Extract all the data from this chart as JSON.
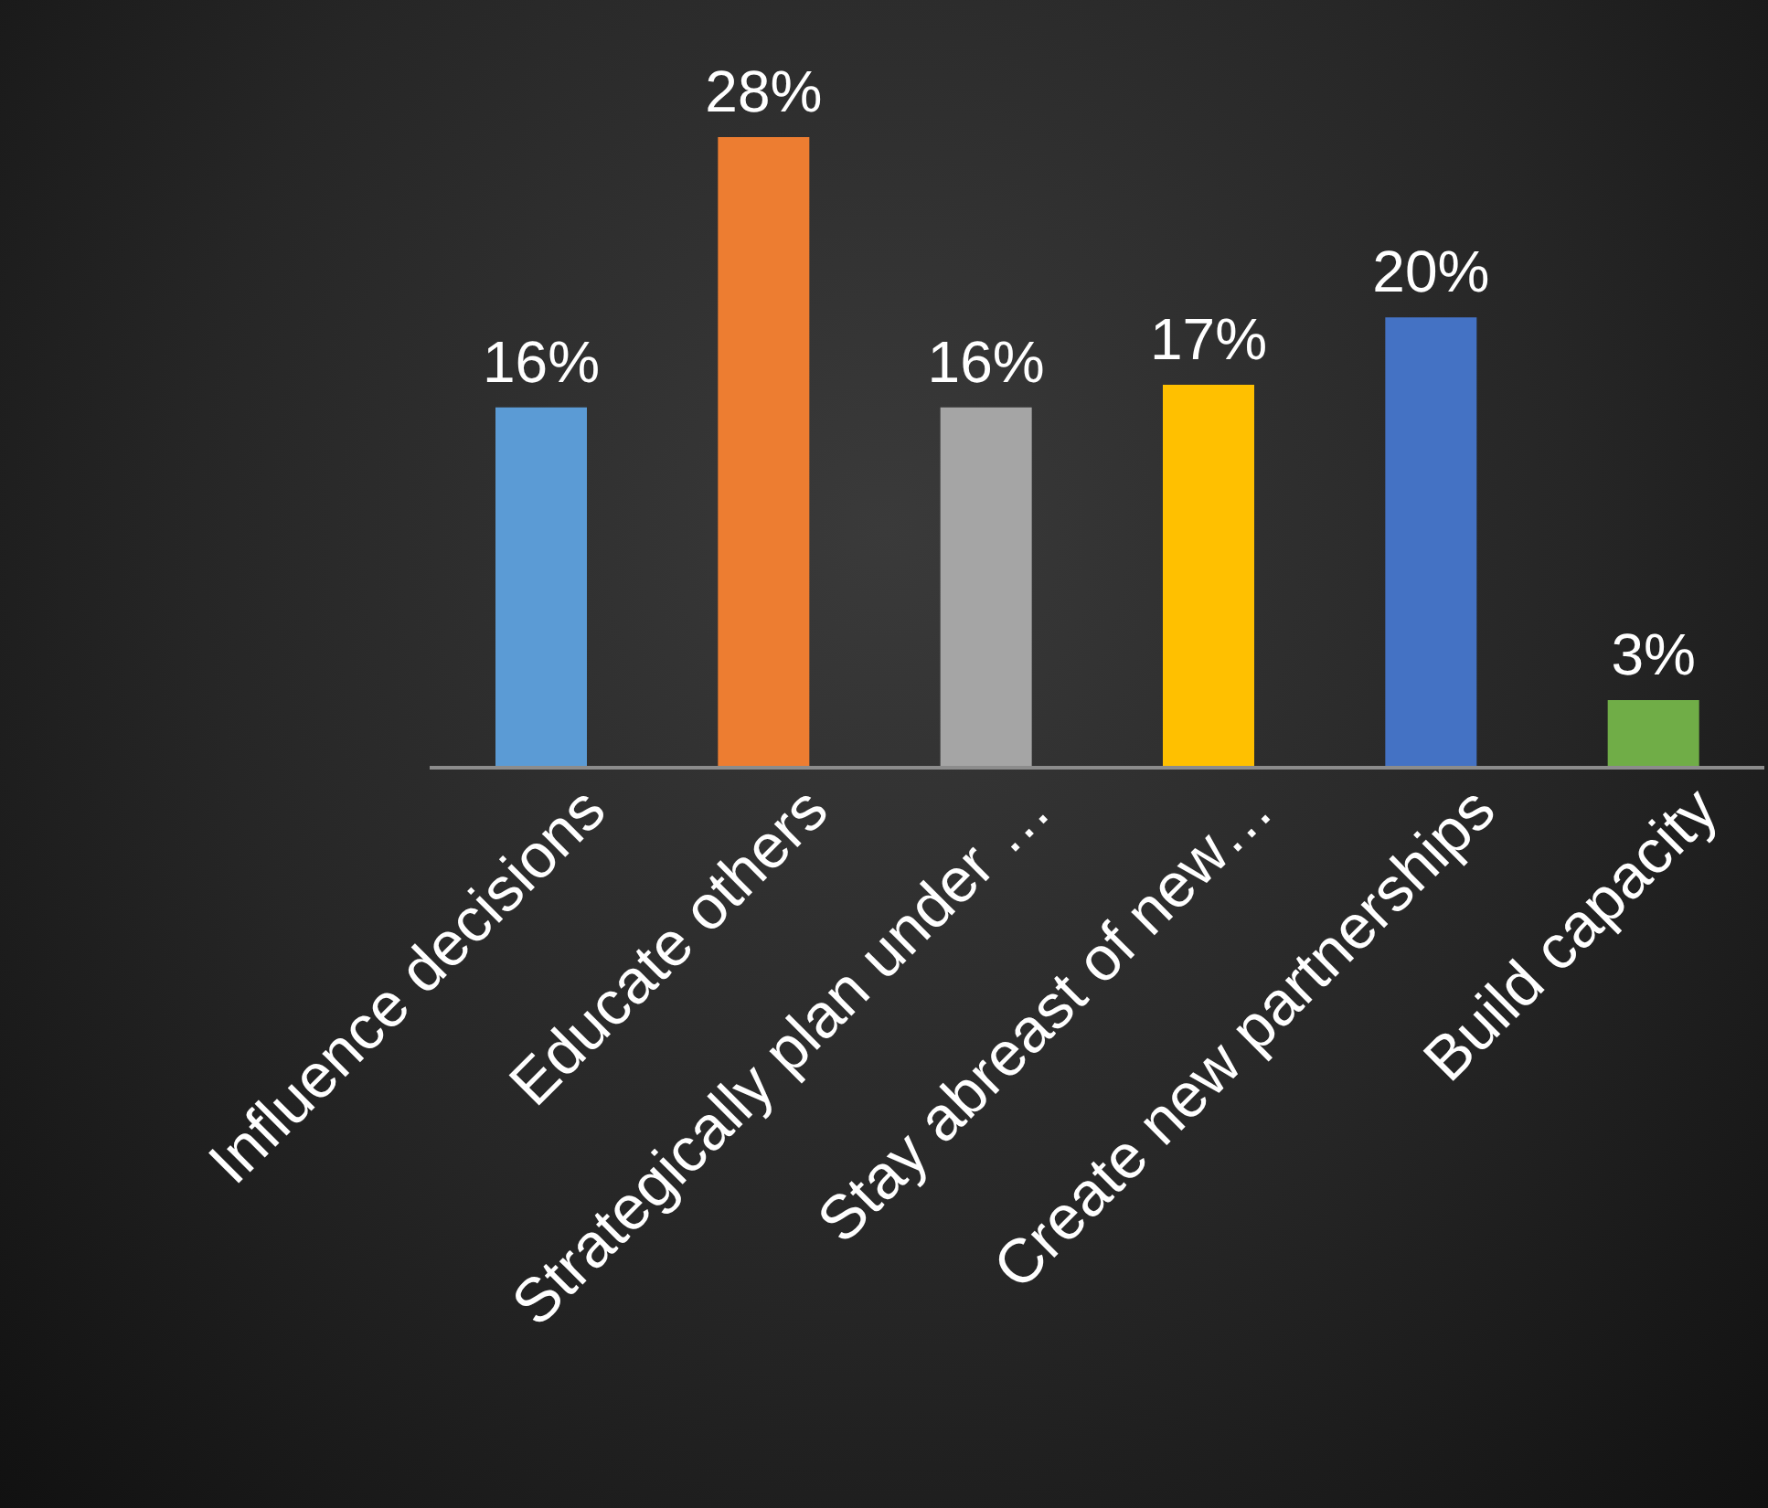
{
  "chart_data": {
    "type": "bar",
    "categories": [
      "Influence decisions",
      "Educate others",
      "Strategically plan under …",
      "Stay abreast of new…",
      "Create new partnerships",
      "Build capacity"
    ],
    "values": [
      16,
      28,
      16,
      17,
      20,
      3
    ],
    "value_labels": [
      "16%",
      "28%",
      "16%",
      "17%",
      "20%",
      "3%"
    ],
    "colors": [
      "#5b9bd5",
      "#ed7d31",
      "#a5a5a5",
      "#ffc000",
      "#4472c4",
      "#70ad47"
    ],
    "grid": false,
    "legend": false
  }
}
